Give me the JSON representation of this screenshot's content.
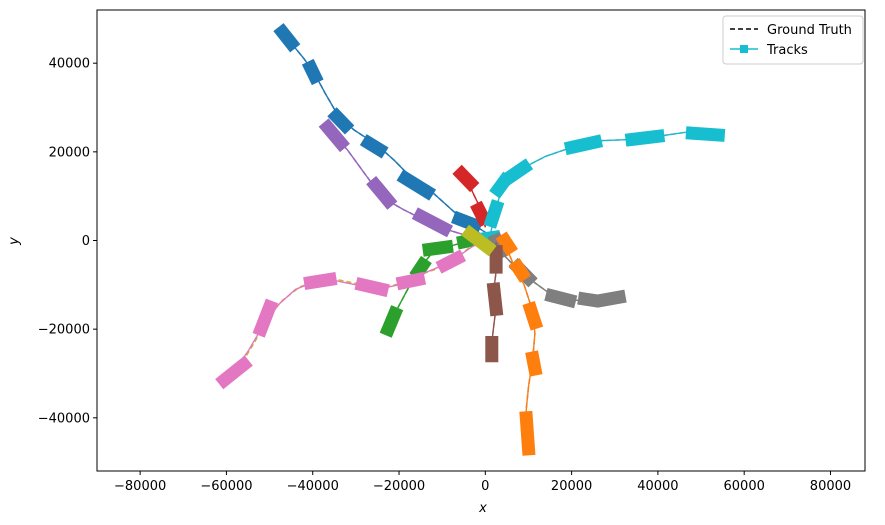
{
  "chart_data": {
    "type": "line",
    "xlabel": "x",
    "ylabel": "y",
    "xlim": [
      -90000,
      88000
    ],
    "ylim": [
      -52000,
      52000
    ],
    "xticks": [
      -80000,
      -60000,
      -40000,
      -20000,
      0,
      20000,
      40000,
      60000,
      80000
    ],
    "yticks": [
      -40000,
      -20000,
      0,
      20000,
      40000
    ],
    "xtick_labels": [
      "−80000",
      "−60000",
      "−40000",
      "−20000",
      "0",
      "20000",
      "40000",
      "60000",
      "80000"
    ],
    "ytick_labels": [
      "−40000",
      "−20000",
      "0",
      "20000",
      "40000"
    ],
    "grid": false,
    "legend_position": "top-right",
    "legend": [
      {
        "label": "Ground Truth",
        "style": "dashed",
        "color": "#000000"
      },
      {
        "label": "Tracks",
        "style": "solid-square",
        "color": "#17becf"
      }
    ],
    "series": [
      {
        "color": "#1f77b4",
        "gt_color": "#1f77b4",
        "path": [
          [
            -47000,
            47000
          ],
          [
            -45000,
            44500
          ],
          [
            -42000,
            41000
          ],
          [
            -39500,
            37500
          ],
          [
            -37000,
            33000
          ],
          [
            -34000,
            28000
          ],
          [
            -30500,
            25000
          ],
          [
            -25000,
            21500
          ],
          [
            -21000,
            18000
          ],
          [
            -17000,
            14000
          ],
          [
            -13000,
            11500
          ],
          [
            -9000,
            8000
          ],
          [
            -5000,
            4500
          ],
          [
            -1500,
            2800
          ],
          [
            1000,
            1200
          ]
        ],
        "tracks": [
          [
            [
              -47000,
              47000
            ],
            [
              -45000,
              44500
            ]
          ],
          [
            [
              -40500,
              39000
            ],
            [
              -39500,
              37000
            ]
          ],
          [
            [
              -34500,
              28000
            ],
            [
              -32500,
              26000
            ]
          ],
          [
            [
              -27000,
              22000
            ],
            [
              -24500,
              20500
            ]
          ],
          [
            [
              -18500,
              14000
            ],
            [
              -13500,
              11000
            ]
          ],
          [
            [
              -6000,
              4800
            ],
            [
              -2500,
              3500
            ]
          ]
        ]
      },
      {
        "color": "#9467bd",
        "gt_color": "#9467bd",
        "path": [
          [
            -36500,
            25500
          ],
          [
            -35000,
            23500
          ],
          [
            -32000,
            20500
          ],
          [
            -29000,
            16500
          ],
          [
            -26000,
            12500
          ],
          [
            -23500,
            9500
          ],
          [
            -19000,
            7000
          ],
          [
            -15000,
            5000
          ],
          [
            -10000,
            2800
          ],
          [
            -5000,
            1300
          ],
          [
            -500,
            300
          ]
        ],
        "tracks": [
          [
            [
              -36500,
              25500
            ],
            [
              -33500,
              22000
            ]
          ],
          [
            [
              -25500,
              12500
            ],
            [
              -22500,
              9000
            ]
          ],
          [
            [
              -15000,
              5500
            ],
            [
              -9500,
              2700
            ]
          ]
        ]
      },
      {
        "color": "#d62728",
        "gt_color": "#d62728",
        "path": [
          [
            -5500,
            15000
          ],
          [
            -4000,
            13500
          ],
          [
            -3000,
            11000
          ],
          [
            -1500,
            8000
          ],
          [
            -500,
            5500
          ],
          [
            0,
            3000
          ]
        ],
        "tracks": [
          [
            [
              -5500,
              15000
            ],
            [
              -3500,
              13000
            ]
          ],
          [
            [
              -1500,
              7000
            ],
            [
              -500,
              5000
            ]
          ]
        ]
      },
      {
        "color": "#17becf",
        "gt_color": "#e377c2",
        "path": [
          [
            1000,
            1000
          ],
          [
            2000,
            4500
          ],
          [
            2500,
            7500
          ],
          [
            4000,
            12000
          ],
          [
            6000,
            14500
          ],
          [
            9000,
            16500
          ],
          [
            14000,
            19000
          ],
          [
            20000,
            21000
          ],
          [
            26000,
            22500
          ],
          [
            34000,
            22800
          ],
          [
            40000,
            23500
          ],
          [
            47000,
            24500
          ],
          [
            54000,
            23800
          ]
        ],
        "tracks": [
          [
            [
              500,
              500
            ],
            [
              2000,
              700
            ]
          ],
          [
            [
              1500,
              4500
            ],
            [
              2500,
              7500
            ]
          ],
          [
            [
              3000,
              11500
            ],
            [
              4500,
              13500
            ]
          ],
          [
            [
              6000,
              14500
            ],
            [
              9000,
              16500
            ]
          ],
          [
            [
              20000,
              21000
            ],
            [
              25500,
              22200
            ]
          ],
          [
            [
              34000,
              22800
            ],
            [
              40000,
              23500
            ]
          ],
          [
            [
              48000,
              24200
            ],
            [
              54000,
              23800
            ]
          ]
        ]
      },
      {
        "color": "#7f7f7f",
        "gt_color": "#2ca02c",
        "path": [
          [
            2500,
            0
          ],
          [
            3500,
            -2500
          ],
          [
            6000,
            -5000
          ],
          [
            10000,
            -8500
          ],
          [
            15000,
            -12000
          ],
          [
            20000,
            -13500
          ],
          [
            25000,
            -13500
          ],
          [
            31000,
            -12800
          ]
        ],
        "tracks": [
          [
            [
              2500,
              0
            ],
            [
              3500,
              -2500
            ]
          ],
          [
            [
              7500,
              -6000
            ],
            [
              10000,
              -8500
            ]
          ],
          [
            [
              15500,
              -12500
            ],
            [
              19500,
              -13500
            ]
          ],
          [
            [
              23000,
              -13200
            ],
            [
              25000,
              -13500
            ]
          ],
          [
            [
              27500,
              -13400
            ],
            [
              31000,
              -12800
            ]
          ]
        ]
      },
      {
        "color": "#ff7f0e",
        "gt_color": "#9467bd",
        "path": [
          [
            5000,
            0
          ],
          [
            5500,
            -3000
          ],
          [
            7000,
            -6500
          ],
          [
            9000,
            -10000
          ],
          [
            11000,
            -16000
          ],
          [
            11500,
            -21000
          ],
          [
            11000,
            -26500
          ],
          [
            10000,
            -33000
          ],
          [
            9500,
            -38000
          ],
          [
            9500,
            -43000
          ],
          [
            10000,
            -47000
          ]
        ],
        "tracks": [
          [
            [
              4500,
              0
            ],
            [
              5500,
              -1500
            ]
          ],
          [
            [
              7500,
              -6000
            ],
            [
              8500,
              -7500
            ]
          ],
          [
            [
              10500,
              -15500
            ],
            [
              11500,
              -18500
            ]
          ],
          [
            [
              11000,
              -26500
            ],
            [
              11500,
              -29000
            ]
          ],
          [
            [
              9500,
              -40000
            ],
            [
              10000,
              -47000
            ]
          ]
        ]
      },
      {
        "color": "#8c564b",
        "gt_color": "#e377c2",
        "path": [
          [
            2500,
            -500
          ],
          [
            2500,
            -3500
          ],
          [
            2500,
            -7000
          ],
          [
            2000,
            -11000
          ],
          [
            2500,
            -15000
          ],
          [
            2000,
            -19000
          ],
          [
            1500,
            -23000
          ],
          [
            1500,
            -26000
          ]
        ],
        "tracks": [
          [
            [
              2500,
              -2500
            ],
            [
              2500,
              -6000
            ]
          ],
          [
            [
              2000,
              -11000
            ],
            [
              2500,
              -15500
            ]
          ],
          [
            [
              1500,
              -23000
            ],
            [
              1500,
              -26000
            ]
          ]
        ]
      },
      {
        "color": "#2ca02c",
        "gt_color": "#2ca02c",
        "path": [
          [
            -22500,
            -20000
          ],
          [
            -21000,
            -16500
          ],
          [
            -18000,
            -11000
          ],
          [
            -15000,
            -6000
          ],
          [
            -12500,
            -3000
          ],
          [
            -9000,
            -1500
          ],
          [
            -4500,
            -300
          ],
          [
            0,
            500
          ]
        ],
        "tracks": [
          [
            [
              -22500,
              -20000
            ],
            [
              -21000,
              -16500
            ]
          ],
          [
            [
              -15500,
              -7000
            ],
            [
              -14500,
              -5500
            ]
          ],
          [
            [
              -13000,
              -2000
            ],
            [
              -9000,
              -1500
            ]
          ],
          [
            [
              -5000,
              -300
            ],
            [
              -2500,
              200
            ]
          ]
        ]
      },
      {
        "color": "#e377c2",
        "gt_color": "#bcbd22",
        "path": [
          [
            -60500,
            -31500
          ],
          [
            -58000,
            -29000
          ],
          [
            -55000,
            -25000
          ],
          [
            -52000,
            -20000
          ],
          [
            -48000,
            -14500
          ],
          [
            -44000,
            -11000
          ],
          [
            -40000,
            -9500
          ],
          [
            -35000,
            -9000
          ],
          [
            -30000,
            -10000
          ],
          [
            -25000,
            -11000
          ],
          [
            -20000,
            -10000
          ],
          [
            -16000,
            -8000
          ],
          [
            -12000,
            -6500
          ],
          [
            -7500,
            -4500
          ],
          [
            -4000,
            -2000
          ],
          [
            -1500,
            -500
          ]
        ],
        "gt_path": [
          [
            -60000,
            -31500
          ],
          [
            -57000,
            -28500
          ],
          [
            -53500,
            -23000
          ],
          [
            -50500,
            -17500
          ],
          [
            -47000,
            -13500
          ],
          [
            -43000,
            -10500
          ],
          [
            -39000,
            -9000
          ],
          [
            -34500,
            -8800
          ],
          [
            -29500,
            -9800
          ],
          [
            -24500,
            -10800
          ],
          [
            -20000,
            -9800
          ],
          [
            -16000,
            -8000
          ],
          [
            -11500,
            -6500
          ],
          [
            -7000,
            -4000
          ],
          [
            -3500,
            -1500
          ],
          [
            -1000,
            -200
          ]
        ],
        "tracks": [
          [
            [
              -60500,
              -31500
            ],
            [
              -56000,
              -28000
            ]
          ],
          [
            [
              -52000,
              -20000
            ],
            [
              -50000,
              -15000
            ]
          ],
          [
            [
              -40500,
              -9500
            ],
            [
              -36000,
              -8800
            ]
          ],
          [
            [
              -28500,
              -10000
            ],
            [
              -24000,
              -11000
            ]
          ],
          [
            [
              -19000,
              -9500
            ],
            [
              -15500,
              -8800
            ]
          ],
          [
            [
              -9500,
              -5500
            ],
            [
              -6500,
              -4000
            ]
          ]
        ]
      },
      {
        "color": "#bcbd22",
        "gt_color": "#bcbd22",
        "path": [
          [
            -3500,
            1500
          ],
          [
            -2000,
            500
          ],
          [
            -500,
            -1000
          ],
          [
            500,
            -1500
          ]
        ],
        "tracks": [
          [
            [
              -3500,
              1500
            ],
            [
              500,
              -1500
            ]
          ]
        ]
      }
    ]
  }
}
